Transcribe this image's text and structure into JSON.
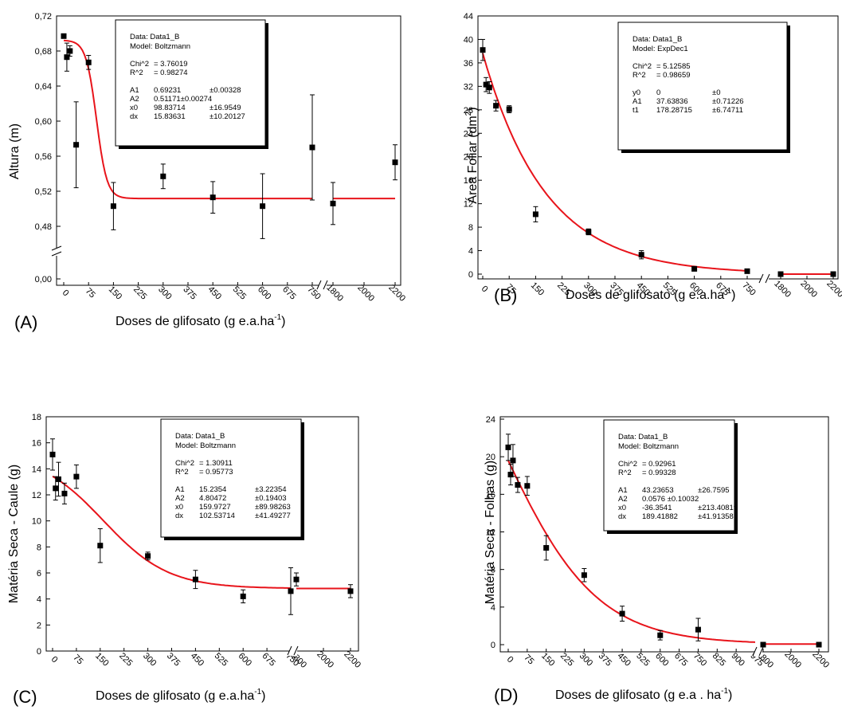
{
  "panels": [
    {
      "letter": "(A)",
      "ylabel": "Altura (m)",
      "xlabel_main": "Doses de glifosato (g e.a.ha",
      "xlabel_sup": "-1",
      "xlabel_end": ")",
      "yticks": [
        "0,00",
        "0,48",
        "0,52",
        "0,56",
        "0,60",
        "0,64",
        "0,68",
        "0,72"
      ],
      "xticks": [
        "0",
        "75",
        "150",
        "225",
        "300",
        "375",
        "450",
        "525",
        "600",
        "675",
        "750",
        "1800",
        "2000",
        "2200"
      ],
      "info": {
        "data": "Data: Data1_B",
        "model": "Model: Boltzmann",
        "stats": [
          [
            "Chi^2",
            "= 3.76019"
          ],
          [
            "R^2",
            "= 0.98274"
          ]
        ],
        "params": [
          [
            "A1",
            "0.69231",
            "±0.00328"
          ],
          [
            "A2",
            "0.51171±0.00274",
            ""
          ],
          [
            "x0",
            "98.83714",
            "±16.9549"
          ],
          [
            "dx",
            "15.83631",
            "±10.20127"
          ]
        ]
      }
    },
    {
      "letter": "(B)",
      "ylabel": "Área Foliar (dm",
      "ylabel_sup": "2",
      "ylabel_end": ")",
      "xlabel_main": "Doses de glifosato (g e.a.ha",
      "xlabel_sup": "-1",
      "xlabel_end": ")",
      "yticks": [
        "0",
        "4",
        "8",
        "12",
        "16",
        "20",
        "24",
        "28",
        "32",
        "36",
        "40",
        "44"
      ],
      "xticks": [
        "0",
        "75",
        "150",
        "225",
        "300",
        "375",
        "450",
        "525",
        "600",
        "675",
        "750",
        "1800",
        "2000",
        "2200"
      ],
      "info": {
        "data": "Data: Data1_B",
        "model": "Model: ExpDec1",
        "stats": [
          [
            "Chi^2",
            "= 5.12585"
          ],
          [
            "R^2",
            "= 0.98659"
          ]
        ],
        "params": [
          [
            "y0",
            "0",
            "±0"
          ],
          [
            "A1",
            "37.63836",
            "±0.71226"
          ],
          [
            "t1",
            "178.28715",
            "±6.74711"
          ]
        ]
      }
    },
    {
      "letter": "(C)",
      "ylabel": "Matéria Seca - Caule (g)",
      "xlabel_main": "Doses de glifosato (g e.a.ha",
      "xlabel_sup": "-1",
      "xlabel_end": ")",
      "yticks": [
        "0",
        "2",
        "4",
        "6",
        "8",
        "10",
        "12",
        "14",
        "16",
        "18"
      ],
      "xticks": [
        "0",
        "75",
        "150",
        "225",
        "300",
        "375",
        "450",
        "525",
        "600",
        "675",
        "750",
        "1800",
        "2000",
        "2200"
      ],
      "info": {
        "data": "Data: Data1_B",
        "model": "Model: Boltzmann",
        "stats": [
          [
            "Chi^2",
            "= 1.30911"
          ],
          [
            "R^2",
            "= 0.95773"
          ]
        ],
        "params": [
          [
            "A1",
            "15.2354",
            "±3.22354"
          ],
          [
            "A2",
            "4.80472",
            "±0.19403"
          ],
          [
            "x0",
            "159.9727",
            "±89.98263"
          ],
          [
            "dx",
            "102.53714",
            "±41.49277"
          ]
        ]
      }
    },
    {
      "letter": "(D)",
      "ylabel": "Matéria Seca - Folhas (g)",
      "xlabel_main": "Doses de glifosato (g e.a . ha",
      "xlabel_sup": "-1",
      "xlabel_end": ")",
      "yticks": [
        "0",
        "4",
        "8",
        "12",
        "16",
        "20",
        "24"
      ],
      "xticks": [
        "0",
        "75",
        "150",
        "225",
        "300",
        "375",
        "450",
        "525",
        "600",
        "675",
        "750",
        "825",
        "900",
        "975",
        "1800",
        "2000",
        "2200"
      ],
      "info": {
        "data": "Data: Data1_B",
        "model": "Model: Boltzmann",
        "stats": [
          [
            "Chi^2",
            "= 0.92961"
          ],
          [
            "R^2",
            "= 0.99328"
          ]
        ],
        "params": [
          [
            "A1",
            "43.23653",
            "±26.7595"
          ],
          [
            "A2",
            "0.0576 ±0.10032",
            ""
          ],
          [
            "x0",
            "-36.3541",
            "±213.40819"
          ],
          [
            "dx",
            "189.41882",
            "±41.91358"
          ]
        ]
      }
    }
  ],
  "chart_data": [
    {
      "type": "scatter",
      "title": "(A)",
      "xlabel": "Doses de glifosato (g e.a.ha-1)",
      "ylabel": "Altura (m)",
      "ylim": [
        0.46,
        0.72
      ],
      "x": [
        0,
        9.4,
        18.75,
        37.5,
        75,
        150,
        300,
        450,
        600,
        750,
        1800,
        2200
      ],
      "y": [
        0.697,
        0.673,
        0.68,
        0.573,
        0.667,
        0.503,
        0.537,
        0.513,
        0.503,
        0.57,
        0.506,
        0.553
      ],
      "err": [
        0.002,
        0.016,
        0.006,
        0.049,
        0.008,
        0.027,
        0.014,
        0.018,
        0.037,
        0.06,
        0.024,
        0.02
      ],
      "fit": {
        "model": "Boltzmann",
        "A1": 0.69231,
        "A2": 0.51171,
        "x0": 98.83714,
        "dx": 15.83631,
        "color": "#e8141b"
      }
    },
    {
      "type": "scatter",
      "title": "(B)",
      "xlabel": "Doses de glifosato (g e.a.ha-1)",
      "ylabel": "Área Foliar (dm2)",
      "ylim": [
        0,
        44
      ],
      "x": [
        0,
        9.4,
        18.75,
        37.5,
        75,
        150,
        300,
        450,
        600,
        750,
        1800,
        2200
      ],
      "y": [
        38.2,
        32.3,
        31.8,
        28.7,
        28.1,
        10.2,
        7.2,
        3.3,
        0.9,
        0.5,
        0.0,
        0.0
      ],
      "err": [
        1.8,
        1.2,
        1.0,
        0.9,
        0.6,
        1.3,
        0.5,
        0.7,
        0.3,
        0.2,
        0.0,
        0.0
      ],
      "fit": {
        "model": "ExpDec1",
        "y0": 0,
        "A1": 37.63836,
        "t1": 178.28715,
        "color": "#e8141b"
      }
    },
    {
      "type": "scatter",
      "title": "(C)",
      "xlabel": "Doses de glifosato (g e.a.ha-1)",
      "ylabel": "Matéria Seca - Caule (g)",
      "ylim": [
        0,
        18
      ],
      "x": [
        0,
        9.4,
        18.75,
        37.5,
        75,
        150,
        300,
        450,
        600,
        750,
        1800,
        2200
      ],
      "y": [
        15.1,
        12.5,
        13.2,
        12.1,
        13.4,
        8.1,
        7.3,
        5.5,
        4.2,
        4.6,
        5.5,
        4.6
      ],
      "err": [
        1.2,
        0.9,
        1.3,
        0.8,
        0.9,
        1.3,
        0.3,
        0.7,
        0.5,
        1.8,
        0.5,
        0.5
      ],
      "fit": {
        "model": "Boltzmann",
        "A1": 15.2354,
        "A2": 4.80472,
        "x0": 159.9727,
        "dx": 102.53714,
        "color": "#e8141b"
      }
    },
    {
      "type": "scatter",
      "title": "(D)",
      "xlabel": "Doses de glifosato (g e.a . ha-1)",
      "ylabel": "Matéria Seca - Folhas (g)",
      "ylim": [
        0,
        24
      ],
      "x": [
        0,
        9.4,
        18.75,
        37.5,
        75,
        150,
        300,
        450,
        600,
        750,
        1800,
        2200
      ],
      "y": [
        21.0,
        18.1,
        19.6,
        17.0,
        16.9,
        10.3,
        7.4,
        3.3,
        1.0,
        1.6,
        0.0,
        0.0
      ],
      "err": [
        1.4,
        1.1,
        1.7,
        0.8,
        1.0,
        1.3,
        0.7,
        0.8,
        0.5,
        1.2,
        0.0,
        0.0
      ],
      "fit": {
        "model": "Boltzmann",
        "A1": 43.23653,
        "A2": 0.0576,
        "x0": -36.3541,
        "dx": 189.41882,
        "color": "#e8141b"
      }
    }
  ]
}
